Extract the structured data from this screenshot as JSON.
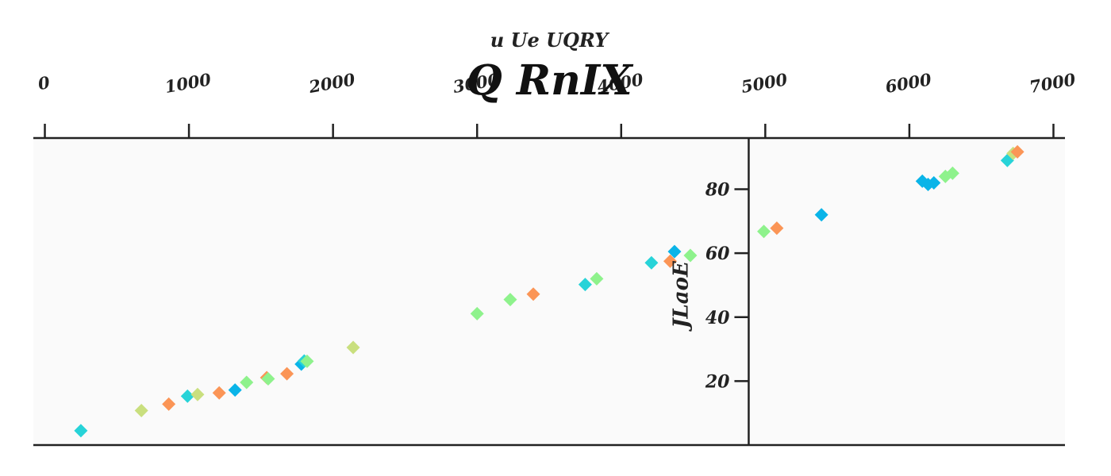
{
  "chart_data": {
    "type": "scatter",
    "title": "Q RnIX",
    "xlabel": "u Ue UQRY",
    "ylabel": "JLaoE",
    "xlim": [
      -80,
      7080
    ],
    "ylim": [
      0,
      96
    ],
    "xticks": [
      0,
      1000,
      2000,
      3000,
      4000,
      5000,
      6000,
      7000
    ],
    "xtick_labels": [
      "0",
      "1000",
      "2000",
      "3000",
      "4000",
      "5000",
      "6000",
      "7000"
    ],
    "yticks": [
      20,
      40,
      60,
      80
    ],
    "ytick_labels": [
      "20",
      "40",
      "60",
      "80"
    ],
    "x_axis_position": "top",
    "y_axis_crossing_x": 4885,
    "grid": false,
    "legend": "none",
    "background": "#fafafa",
    "points": [
      {
        "x": 250,
        "y": 4.5,
        "color": "#27d3d8"
      },
      {
        "x": 670,
        "y": 10.8,
        "color": "#c9df7e"
      },
      {
        "x": 860,
        "y": 12.8,
        "color": "#fb9556"
      },
      {
        "x": 990,
        "y": 15.3,
        "color": "#27d3d8"
      },
      {
        "x": 1060,
        "y": 15.8,
        "color": "#c9df7e"
      },
      {
        "x": 1210,
        "y": 16.3,
        "color": "#fb9556"
      },
      {
        "x": 1320,
        "y": 17.2,
        "color": "#0ab4e8"
      },
      {
        "x": 1400,
        "y": 19.6,
        "color": "#8ef28c"
      },
      {
        "x": 1540,
        "y": 21.1,
        "color": "#fb9556"
      },
      {
        "x": 1550,
        "y": 20.7,
        "color": "#8ef28c"
      },
      {
        "x": 1680,
        "y": 22.3,
        "color": "#fb9556"
      },
      {
        "x": 1780,
        "y": 25.3,
        "color": "#0ab4e8"
      },
      {
        "x": 1800,
        "y": 26.3,
        "color": "#27d3d8"
      },
      {
        "x": 1820,
        "y": 26.2,
        "color": "#8ef28c"
      },
      {
        "x": 2140,
        "y": 30.5,
        "color": "#c9df7e"
      },
      {
        "x": 3000,
        "y": 41.1,
        "color": "#8ef28c"
      },
      {
        "x": 3230,
        "y": 45.5,
        "color": "#8ef28c"
      },
      {
        "x": 3390,
        "y": 47.2,
        "color": "#fb9556"
      },
      {
        "x": 3750,
        "y": 50.2,
        "color": "#27d3d8"
      },
      {
        "x": 3830,
        "y": 52.0,
        "color": "#8ef28c"
      },
      {
        "x": 4210,
        "y": 57.0,
        "color": "#27d3d8"
      },
      {
        "x": 4340,
        "y": 57.5,
        "color": "#fb9556"
      },
      {
        "x": 4370,
        "y": 60.5,
        "color": "#0ab4e8"
      },
      {
        "x": 4480,
        "y": 59.3,
        "color": "#8ef28c"
      },
      {
        "x": 4990,
        "y": 66.8,
        "color": "#8ef28c"
      },
      {
        "x": 5080,
        "y": 67.8,
        "color": "#fb9556"
      },
      {
        "x": 5390,
        "y": 72.0,
        "color": "#0ab4e8"
      },
      {
        "x": 6090,
        "y": 82.5,
        "color": "#0ab4e8"
      },
      {
        "x": 6130,
        "y": 81.5,
        "color": "#0ab4e8"
      },
      {
        "x": 6170,
        "y": 82.0,
        "color": "#0ab4e8"
      },
      {
        "x": 6250,
        "y": 84.0,
        "color": "#8ef28c"
      },
      {
        "x": 6300,
        "y": 85.0,
        "color": "#8ef28c"
      },
      {
        "x": 6680,
        "y": 89.0,
        "color": "#27d3d8"
      },
      {
        "x": 6720,
        "y": 91.2,
        "color": "#c9df7e"
      },
      {
        "x": 6750,
        "y": 91.7,
        "color": "#fb9556"
      }
    ]
  }
}
